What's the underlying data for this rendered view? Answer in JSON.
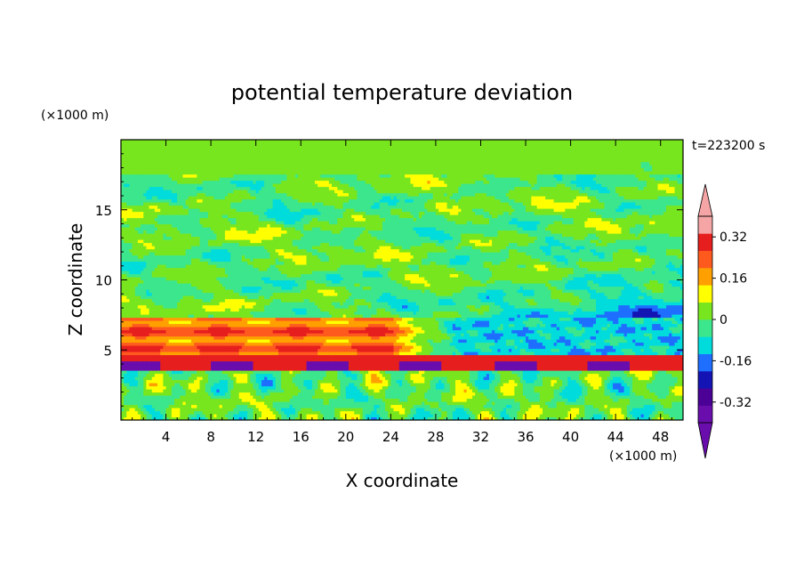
{
  "chart_data": {
    "type": "heatmap",
    "title": "potential temperature deviation",
    "xlabel": "X coordinate",
    "ylabel": "Z coordinate",
    "x_unit": "(×1000 m)",
    "y_unit": "(×1000 m)",
    "time_label": "t=223200 s",
    "xlim": [
      0,
      50
    ],
    "ylim": [
      0,
      20
    ],
    "x_ticks": [
      4,
      8,
      12,
      16,
      20,
      24,
      28,
      32,
      36,
      40,
      44,
      48
    ],
    "y_ticks": [
      5,
      10,
      15
    ],
    "x_tick_labels": [
      "4",
      "8",
      "12",
      "16",
      "20",
      "24",
      "28",
      "32",
      "36",
      "40",
      "44",
      "48"
    ],
    "y_tick_labels": [
      "5",
      "10",
      "15"
    ],
    "colorbar": {
      "levels": [
        -0.4,
        -0.32,
        -0.24,
        -0.16,
        -0.08,
        0,
        0.08,
        0.16,
        0.24,
        0.32,
        0.4
      ],
      "labels": [
        "-0.32",
        "-0.16",
        "0",
        "0.16",
        "0.32"
      ],
      "label_values": [
        -0.32,
        -0.16,
        0,
        0.16,
        0.32
      ],
      "colors": [
        "#6a0dad",
        "#4b0096",
        "#1414b4",
        "#1e6eff",
        "#00dcdc",
        "#3ce68c",
        "#78e61e",
        "#ffff00",
        "#ffa000",
        "#ff5a1e",
        "#e61e1e",
        "#f5a5a5"
      ],
      "under_color": "#6a0dad",
      "over_color": "#f5a5a5"
    }
  }
}
